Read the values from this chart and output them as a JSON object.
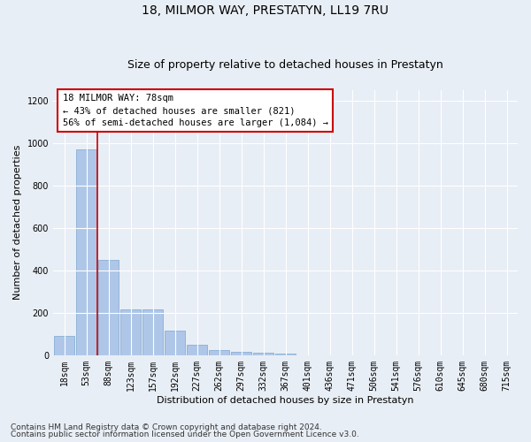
{
  "title": "18, MILMOR WAY, PRESTATYN, LL19 7RU",
  "subtitle": "Size of property relative to detached houses in Prestatyn",
  "xlabel": "Distribution of detached houses by size in Prestatyn",
  "ylabel": "Number of detached properties",
  "annotation_title": "18 MILMOR WAY: 78sqm",
  "annotation_line1": "← 43% of detached houses are smaller (821)",
  "annotation_line2": "56% of semi-detached houses are larger (1,084) →",
  "footer_line1": "Contains HM Land Registry data © Crown copyright and database right 2024.",
  "footer_line2": "Contains public sector information licensed under the Open Government Licence v3.0.",
  "bin_labels": [
    "18sqm",
    "53sqm",
    "88sqm",
    "123sqm",
    "157sqm",
    "192sqm",
    "227sqm",
    "262sqm",
    "297sqm",
    "332sqm",
    "367sqm",
    "401sqm",
    "436sqm",
    "471sqm",
    "506sqm",
    "541sqm",
    "576sqm",
    "610sqm",
    "645sqm",
    "680sqm",
    "715sqm"
  ],
  "bar_values": [
    90,
    970,
    450,
    215,
    215,
    115,
    50,
    25,
    18,
    12,
    8,
    0,
    0,
    0,
    0,
    0,
    0,
    0,
    0,
    0,
    0
  ],
  "bar_color": "#aec6e8",
  "bar_edge_color": "#7aa8d0",
  "vline_x": 1.5,
  "vline_color": "#cc0000",
  "annotation_box_color": "#ffffff",
  "annotation_box_edge_color": "#cc0000",
  "ylim": [
    0,
    1250
  ],
  "yticks": [
    0,
    200,
    400,
    600,
    800,
    1000,
    1200
  ],
  "bg_color": "#e8eef5",
  "plot_bg_color": "#e8eef5",
  "grid_color": "#ffffff",
  "title_fontsize": 10,
  "subtitle_fontsize": 9,
  "axis_label_fontsize": 8,
  "tick_fontsize": 7,
  "annotation_fontsize": 7.5,
  "footer_fontsize": 6.5
}
